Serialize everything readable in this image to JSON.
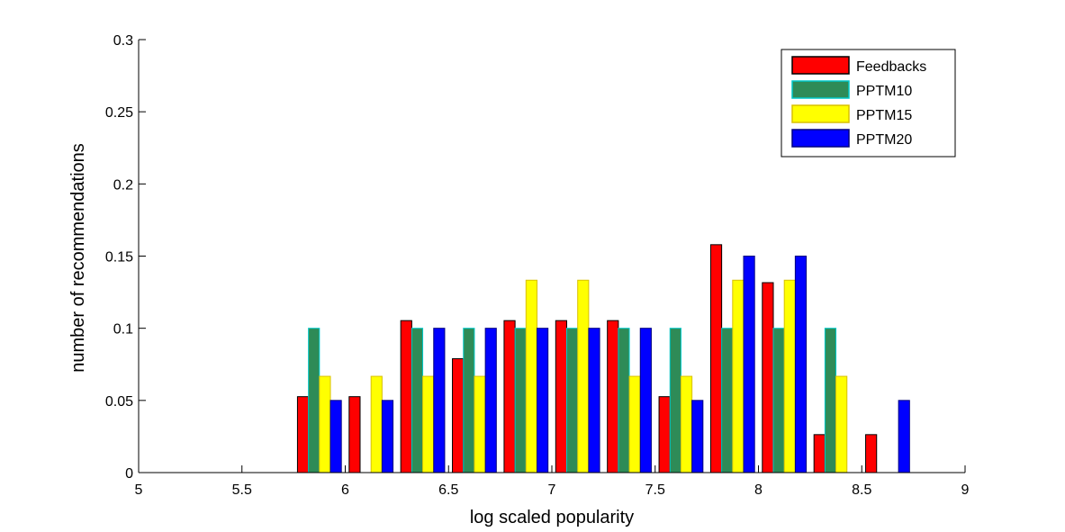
{
  "chart_data": {
    "type": "bar",
    "title": "",
    "xlabel": "log scaled popularity",
    "ylabel": "number of recommendations",
    "xlim": [
      5,
      9
    ],
    "ylim": [
      0,
      0.3
    ],
    "xticks": [
      5,
      5.5,
      6,
      6.5,
      7,
      7.5,
      8,
      8.5,
      9
    ],
    "xtick_labels": [
      "5",
      "5.5",
      "6",
      "6.5",
      "7",
      "7.5",
      "8",
      "8.5",
      "9"
    ],
    "yticks": [
      0,
      0.05,
      0.1,
      0.15,
      0.2,
      0.25,
      0.3
    ],
    "ytick_labels": [
      "0",
      "0.05",
      "0.1",
      "0.15",
      "0.2",
      "0.25",
      "0.3"
    ],
    "grid": false,
    "legend_position": "top-right",
    "x": [
      5.125,
      5.375,
      5.625,
      5.875,
      6.125,
      6.375,
      6.625,
      6.875,
      7.125,
      7.375,
      7.625,
      7.875,
      8.125,
      8.375,
      8.625,
      8.875
    ],
    "series": [
      {
        "name": "Feedbacks",
        "color": "#ff0000",
        "values": [
          0,
          0,
          0,
          0.0526,
          0.0526,
          0.1053,
          0.0789,
          0.1053,
          0.1053,
          0.1053,
          0.0526,
          0.1579,
          0.1316,
          0.0263,
          0.0263,
          0
        ]
      },
      {
        "name": "PPTM10",
        "color": "#2e8b57",
        "values": [
          0,
          0,
          0,
          0.1,
          0,
          0.1,
          0.1,
          0.1,
          0.1,
          0.1,
          0.1,
          0.1,
          0.1,
          0.1,
          0,
          0
        ]
      },
      {
        "name": "PPTM15",
        "color": "#ffff00",
        "values": [
          0,
          0,
          0,
          0.0667,
          0.0667,
          0.0667,
          0.0667,
          0.1333,
          0.1333,
          0.0667,
          0.0667,
          0.1333,
          0.1333,
          0.0667,
          0,
          0
        ]
      },
      {
        "name": "PPTM20",
        "color": "#0000ff",
        "values": [
          0,
          0,
          0,
          0.05,
          0.05,
          0.1,
          0.1,
          0.1,
          0.1,
          0.1,
          0.05,
          0.15,
          0.15,
          0,
          0.05,
          0
        ]
      }
    ]
  }
}
